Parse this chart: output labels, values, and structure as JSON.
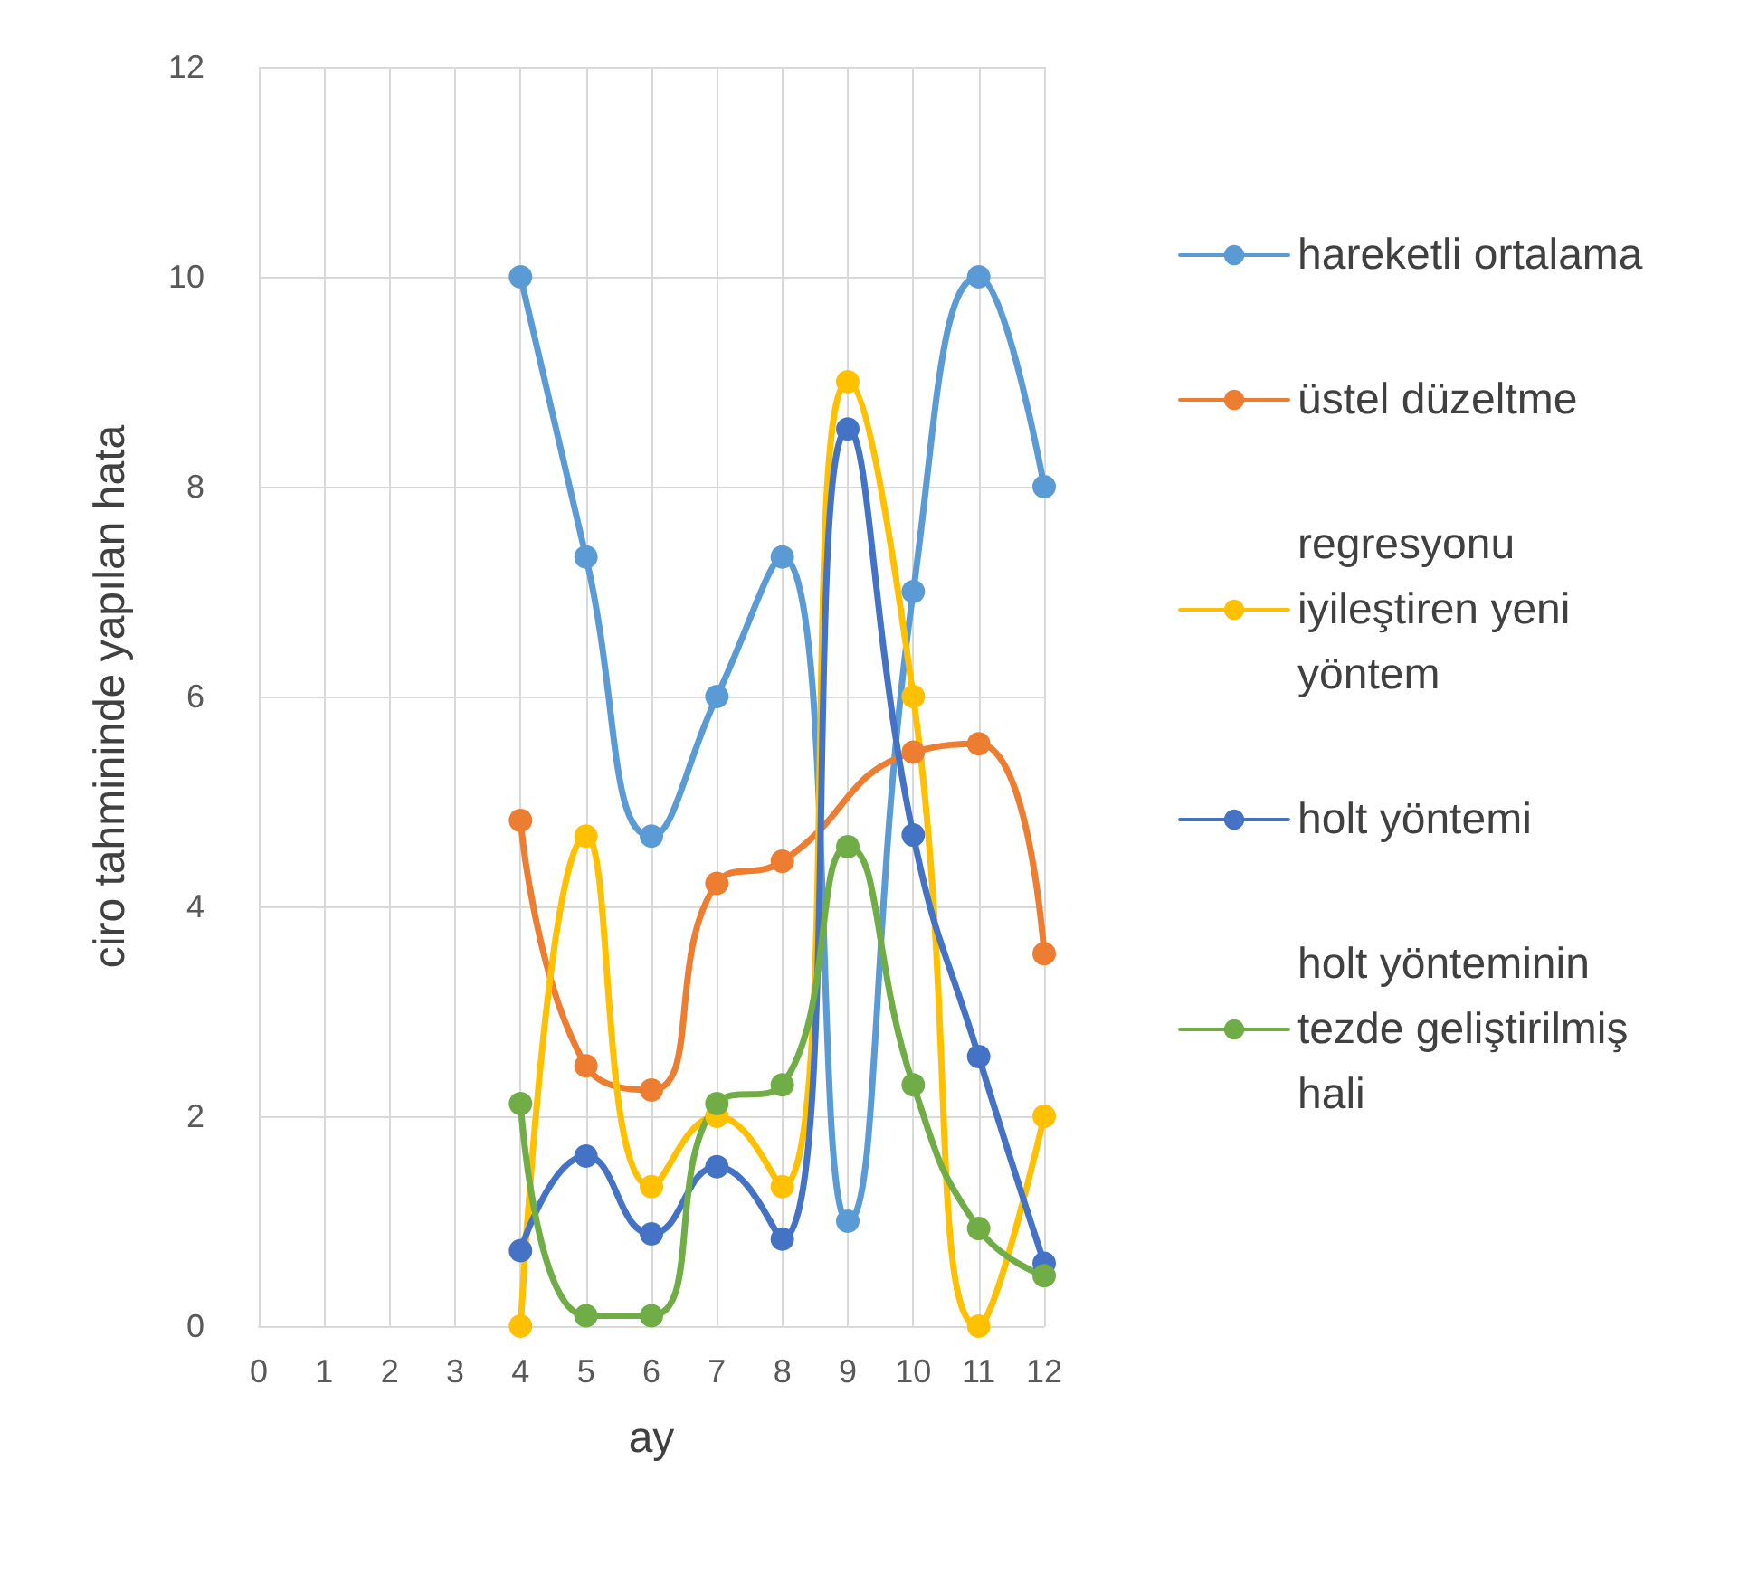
{
  "chart_data": {
    "type": "line",
    "xlabel": "ay",
    "ylabel": "ciro tahmininde yapılan hata",
    "x": [
      4,
      5,
      6,
      7,
      8,
      9,
      10,
      11,
      12
    ],
    "xlim": [
      0,
      12
    ],
    "xticks": [
      0,
      1,
      2,
      3,
      4,
      5,
      6,
      7,
      8,
      9,
      10,
      11,
      12
    ],
    "ylim": [
      0,
      12
    ],
    "yticks": [
      0,
      2,
      4,
      6,
      8,
      10,
      12
    ],
    "grid": true,
    "legend": "right",
    "marker": "circle",
    "line_style": "solid",
    "series": [
      {
        "name": "hareketli ortalama",
        "color": "#5b9bd5",
        "values": [
          10,
          7.33,
          4.67,
          6,
          7.33,
          1,
          7,
          10,
          8
        ]
      },
      {
        "name": "üstel düzeltme",
        "color": "#ed7d31",
        "values": [
          4.82,
          2.48,
          2.25,
          4.22,
          4.43,
          null,
          5.47,
          5.55,
          3.55
        ]
      },
      {
        "name": "regresyonu iyileştiren yeni yöntem",
        "color": "#ffc000",
        "values": [
          0,
          4.67,
          1.33,
          2,
          1.33,
          9,
          6,
          0,
          2
        ]
      },
      {
        "name": "holt yöntemi",
        "color": "#4472c4",
        "values": [
          0.72,
          1.62,
          0.88,
          1.52,
          0.83,
          8.55,
          4.68,
          2.57,
          0.6
        ]
      },
      {
        "name": "holt yönteminin tezde geliştirilmiş hali",
        "color": "#70ad47",
        "values": [
          2.12,
          0.1,
          0.1,
          2.12,
          2.3,
          4.57,
          2.3,
          0.93,
          0.48
        ]
      }
    ]
  }
}
